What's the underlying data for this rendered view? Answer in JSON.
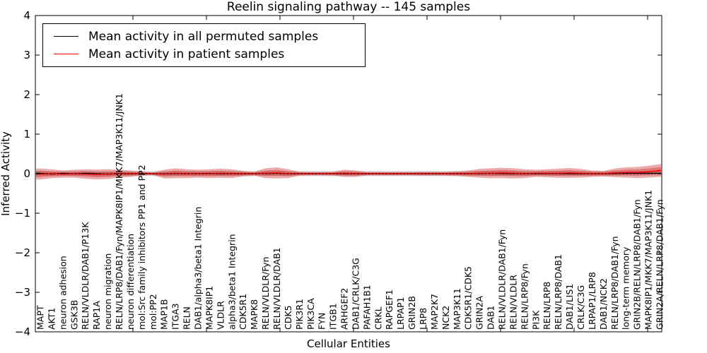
{
  "chart_data": {
    "type": "line",
    "title": "Reelin signaling pathway -- 145 samples",
    "xlabel": "Cellular Entities",
    "ylabel": "Inferred Activity",
    "ylim": [
      -4,
      4
    ],
    "yticks": [
      -4,
      -3,
      -2,
      -1,
      0,
      1,
      2,
      3,
      4
    ],
    "grid": false,
    "legend": {
      "position": "upper left",
      "entries": [
        {
          "label": "Mean activity in all permuted samples",
          "color": "#000000"
        },
        {
          "label": "Mean activity in patient samples",
          "color": "#ff0000"
        }
      ]
    },
    "categories": [
      "MAPT",
      "AKT1",
      "neuron adhesion",
      "GSK3B",
      "RELN/VLDLR/DAB1/P13K",
      "RAP1A",
      "neuron migration",
      "RELN/LRP8/DAB1/Fyn/MAPK8IP1/MKK7/MAP3K11/JNK1",
      "neuron differentiation",
      "mol:Src family inhibitors PP1 and PP2",
      "mol:PP2",
      "MAP1B",
      "ITGA3",
      "RELN",
      "DAB1/alpha3/beta1 Integrin",
      "MAPK8IP1",
      "VLDLR",
      "alpha3/beta1 Integrin",
      "CDK5R1",
      "MAPK8",
      "RELN/VLDLR/Fyn",
      "RELN/VLDLR/DAB1",
      "CDK5",
      "PIK3R1",
      "PIK3CA",
      "FYN",
      "ITGB1",
      "ARHGEF2",
      "DAB1/CRLK/C3G",
      "PAFAH1B1",
      "CRKL",
      "RAPGEF1",
      "LRPAP1",
      "GRIN2B",
      "LRP8",
      "MAP2K7",
      "NCK2",
      "MAP3K11",
      "CDK5R1/CDK5",
      "GRIN2A",
      "DAB1",
      "RELN/VLDLR/DAB1/Fyn",
      "RELN/VLDLR",
      "RELN/LRP8/Fyn",
      "PI3K",
      "RELN/LRP8",
      "RELN/LRP8/DAB1",
      "DAB1/LIS1",
      "CRLK/C3G",
      "LRPAP1/LRP8",
      "DAB1/NCK2",
      "RELN/LRP8/DAB1/Fyn",
      "long-term memory",
      "GRIN2B/RELN/LRP8/DAB1/Fyn",
      "MAPK8IP1/MKK7/MAP3K11/JNK1",
      "GRIN2A/RELN/LRP8/DAB1/Fyn"
    ],
    "series": [
      {
        "name": "Mean activity in all permuted samples",
        "color": "#000000",
        "line_style": "solid",
        "values": [
          0.01,
          -0.01,
          0.01,
          -0.005,
          0.01,
          0,
          -0.01,
          0.005,
          -0.005,
          0.01,
          0,
          -0.005,
          0.005,
          0,
          0,
          0.005,
          0,
          0,
          0,
          0,
          0.005,
          0.01,
          0,
          0,
          0,
          0,
          0,
          0,
          0,
          0,
          0,
          0,
          0,
          0,
          0,
          0,
          0,
          0,
          0,
          0.005,
          0.01,
          0.005,
          0,
          0,
          0,
          0.005,
          0.005,
          0,
          0,
          0,
          0,
          0.005,
          0.01,
          0.01,
          0.01,
          0.01
        ]
      },
      {
        "name": "Mean activity in patient samples",
        "color": "#ff0000",
        "line_style": "solid",
        "values": [
          -0.01,
          0,
          -0.01,
          0,
          -0.01,
          -0.02,
          -0.01,
          0,
          0,
          0,
          0,
          -0.01,
          0.01,
          0,
          0,
          0,
          0.01,
          0,
          0,
          0,
          0.01,
          0.02,
          0,
          0,
          0,
          0,
          0,
          0.01,
          0,
          0,
          0,
          0,
          0,
          0,
          0,
          0,
          0,
          0,
          0,
          0.01,
          0.01,
          0.02,
          0.01,
          0,
          0.01,
          0.01,
          0.01,
          0.02,
          0.01,
          0,
          0,
          0.02,
          0.03,
          0.03,
          0.05,
          0.08
        ]
      }
    ],
    "bands": [
      {
        "name": "permuted samples spread",
        "color": "#999999",
        "opacity": 0.4,
        "half_width": 0.06
      },
      {
        "name": "patient samples spread",
        "color": "#cc2222",
        "opacity": 0.38,
        "half_widths": [
          0.14,
          0.11,
          0.09,
          0.1,
          0.12,
          0.125,
          0.125,
          0.1,
          0.08,
          0.05,
          0.035,
          0.11,
          0.125,
          0.11,
          0.1,
          0.11,
          0.115,
          0.11,
          0.07,
          0.05,
          0.125,
          0.14,
          0.11,
          0.05,
          0.045,
          0.045,
          0.05,
          0.09,
          0.08,
          0.045,
          0.045,
          0.045,
          0.045,
          0.045,
          0.05,
          0.05,
          0.05,
          0.06,
          0.08,
          0.11,
          0.125,
          0.13,
          0.13,
          0.11,
          0.09,
          0.1,
          0.115,
          0.125,
          0.11,
          0.08,
          0.07,
          0.11,
          0.13,
          0.14,
          0.15,
          0.16
        ]
      }
    ],
    "zero_line": {
      "y": 0,
      "style": "dotted",
      "color": "#000000"
    }
  }
}
